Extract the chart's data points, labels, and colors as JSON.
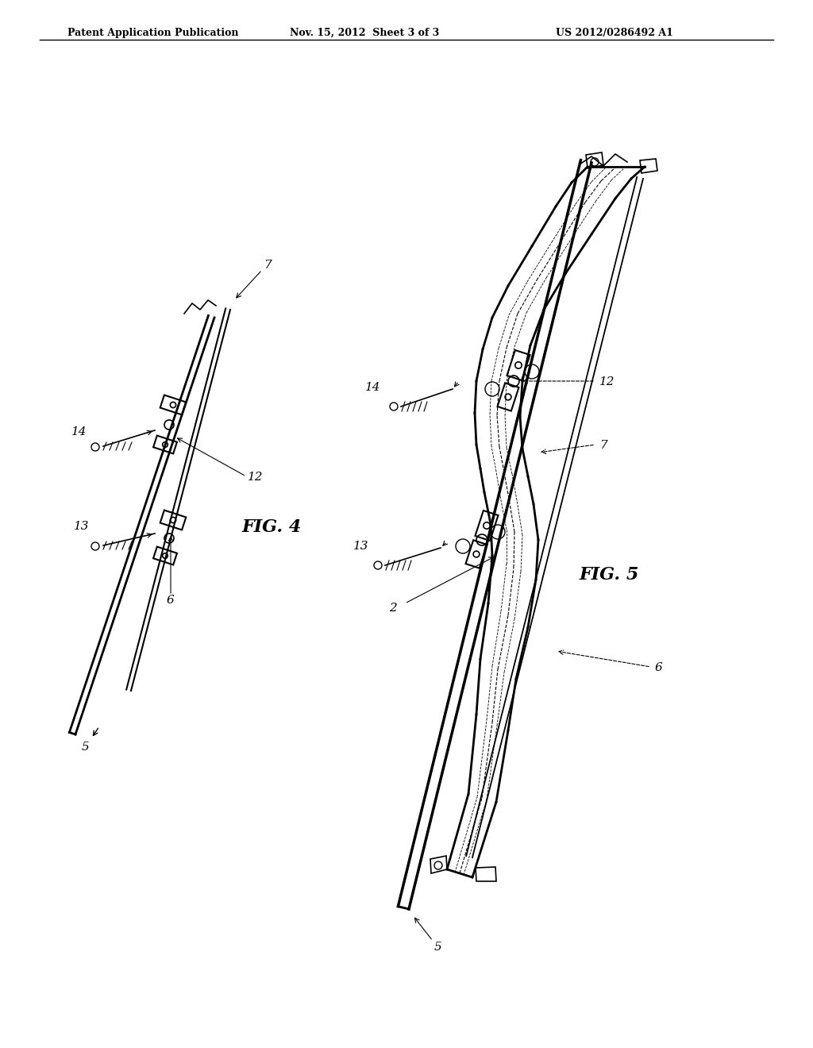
{
  "bg_color": "#ffffff",
  "line_color": "#000000",
  "header_text": "Patent Application Publication",
  "header_date": "Nov. 15, 2012  Sheet 3 of 3",
  "header_patent": "US 2012/0286492 A1",
  "fig4_label": "FIG. 4",
  "fig5_label": "FIG. 5",
  "labels": {
    "7_fig4": "7",
    "12_fig4": "12",
    "14_fig4": "14",
    "13_fig4": "13",
    "6_fig4": "6",
    "5_fig4": "5",
    "7_fig5": "7",
    "12_fig5": "12",
    "14_fig5": "14",
    "13_fig5": "13",
    "6_fig5": "6",
    "5_fig5": "5",
    "2_fig5": "2"
  }
}
